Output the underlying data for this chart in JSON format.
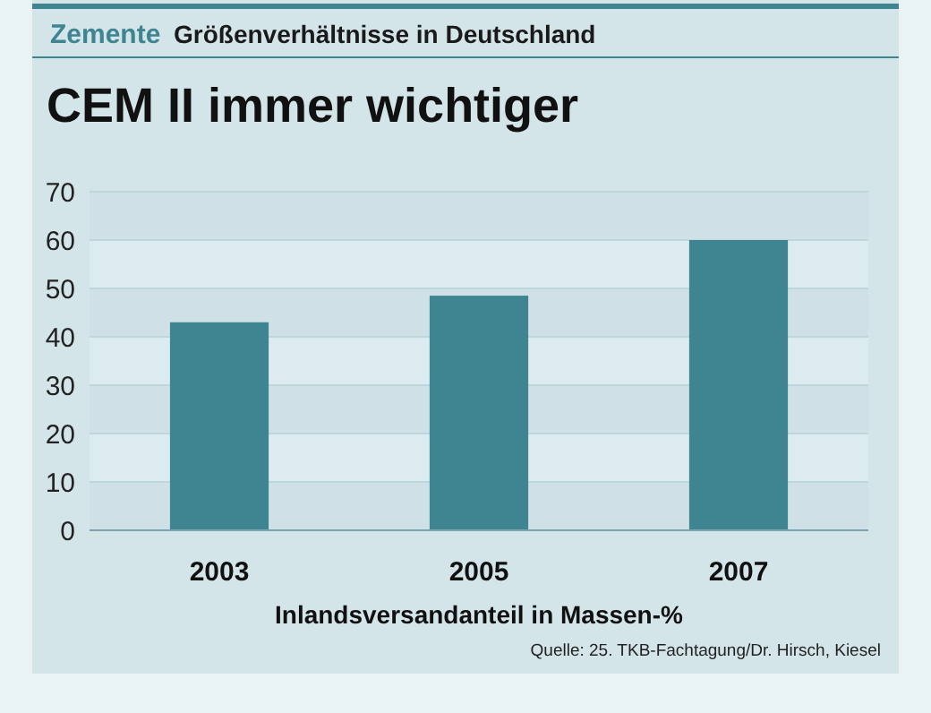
{
  "chart_data": {
    "type": "bar",
    "title": "CEM II immer wichtiger",
    "subtitle": "Größenverhältnisse in Deutschland",
    "xlabel": "Inlandsversandanteil in Massen-%",
    "categories": [
      "2003",
      "2005",
      "2007"
    ],
    "values": [
      43,
      48.5,
      60
    ],
    "color": "#3f8491",
    "ylim": [
      0,
      70
    ],
    "yticks": [
      0,
      10,
      20,
      30,
      40,
      50,
      60,
      70
    ],
    "grid": "y",
    "annotations": [
      "Zemente",
      "Quelle: 25. TKB-Fachtagung/Dr. Hirsch, Kiesel"
    ]
  }
}
